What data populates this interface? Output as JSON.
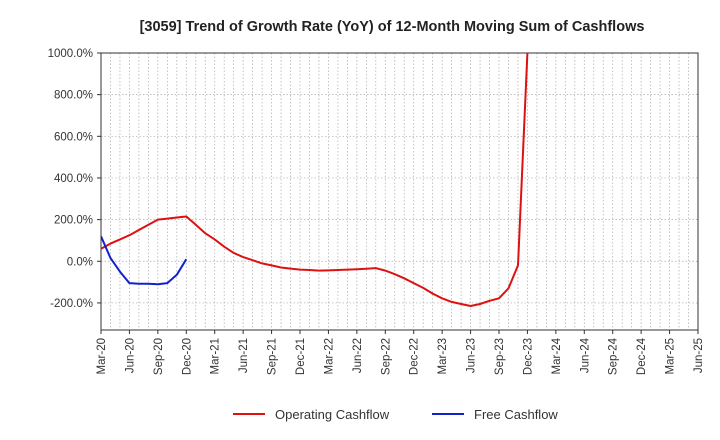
{
  "chart_data": {
    "type": "line",
    "title": "[3059]  Trend of Growth Rate (YoY) of 12-Month Moving Sum of Cashflows",
    "xlabel": "",
    "ylabel": "",
    "ylim": [
      -330,
      1000
    ],
    "grid": true,
    "legend_position": "bottom-center",
    "x_ticks": [
      "Mar-20",
      "Jun-20",
      "Sep-20",
      "Dec-20",
      "Mar-21",
      "Jun-21",
      "Sep-21",
      "Dec-21",
      "Mar-22",
      "Jun-22",
      "Sep-22",
      "Dec-22",
      "Mar-23",
      "Jun-23",
      "Sep-23",
      "Dec-23",
      "Mar-24",
      "Jun-24",
      "Sep-24",
      "Dec-24",
      "Mar-25",
      "Jun-25"
    ],
    "y_ticks": [
      {
        "value": 1000,
        "label": "1000.0%"
      },
      {
        "value": 800,
        "label": "800.0%"
      },
      {
        "value": 600,
        "label": "600.0%"
      },
      {
        "value": 400,
        "label": "400.0%"
      },
      {
        "value": 200,
        "label": "200.0%"
      },
      {
        "value": 0,
        "label": "0.0%"
      },
      {
        "value": -200,
        "label": "-200.0%"
      }
    ],
    "x_months": [
      "2020-03",
      "2020-04",
      "2020-05",
      "2020-06",
      "2020-07",
      "2020-08",
      "2020-09",
      "2020-10",
      "2020-11",
      "2020-12",
      "2021-01",
      "2021-02",
      "2021-03",
      "2021-04",
      "2021-05",
      "2021-06",
      "2021-07",
      "2021-08",
      "2021-09",
      "2021-10",
      "2021-11",
      "2021-12",
      "2022-01",
      "2022-02",
      "2022-03",
      "2022-04",
      "2022-05",
      "2022-06",
      "2022-07",
      "2022-08",
      "2022-09",
      "2022-10",
      "2022-11",
      "2022-12",
      "2023-01",
      "2023-02",
      "2023-03",
      "2023-04",
      "2023-05",
      "2023-06",
      "2023-07",
      "2023-08",
      "2023-09",
      "2023-10",
      "2023-11",
      "2023-12",
      "2024-01",
      "2024-02",
      "2024-03",
      "2024-04",
      "2024-05",
      "2024-06",
      "2024-07",
      "2024-08",
      "2024-09",
      "2024-10",
      "2024-11",
      "2024-12",
      "2025-01",
      "2025-02",
      "2025-03"
    ],
    "series": [
      {
        "name": "Operating Cashflow",
        "color": "#dd1111",
        "values": [
          60,
          85,
          105,
          125,
          150,
          175,
          200,
          205,
          210,
          215,
          175,
          135,
          105,
          70,
          40,
          20,
          5,
          -10,
          -20,
          -30,
          -35,
          -40,
          -42,
          -45,
          -44,
          -42,
          -40,
          -38,
          -36,
          -33,
          -45,
          -62,
          -82,
          -105,
          -128,
          -155,
          -178,
          -195,
          -205,
          -215,
          -205,
          -190,
          -178,
          -130,
          -20,
          1000,
          null,
          null,
          null,
          null,
          null,
          null,
          null,
          null,
          null,
          null,
          null,
          null,
          null,
          null,
          null
        ]
      },
      {
        "name": "Free Cashflow",
        "color": "#1122cc",
        "values": [
          120,
          15,
          -50,
          -105,
          -108,
          -108,
          -110,
          -105,
          -65,
          10,
          null,
          null,
          null,
          null,
          null,
          null,
          null,
          null,
          null,
          null,
          null,
          null,
          null,
          null,
          null,
          null,
          null,
          null,
          null,
          null,
          null,
          null,
          null,
          null,
          null,
          null,
          null,
          null,
          null,
          null,
          null,
          null,
          null,
          null,
          null,
          null,
          null,
          null,
          null,
          null,
          null,
          null,
          null,
          null,
          null,
          null,
          null,
          null,
          null,
          null,
          null
        ]
      }
    ]
  },
  "legend": {
    "items": [
      {
        "label": "Operating Cashflow",
        "color": "#dd1111"
      },
      {
        "label": "Free Cashflow",
        "color": "#1122cc"
      }
    ]
  }
}
